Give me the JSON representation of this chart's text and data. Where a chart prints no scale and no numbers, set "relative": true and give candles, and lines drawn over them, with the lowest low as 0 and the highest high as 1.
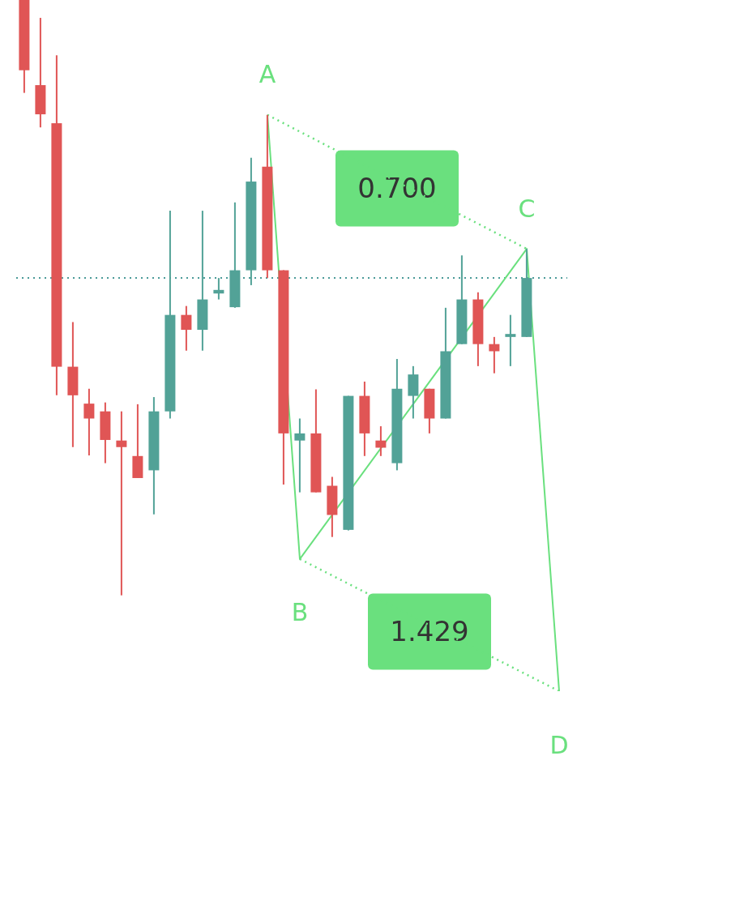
{
  "chart_data": {
    "type": "candlestick",
    "relative": true,
    "tick_labels": false,
    "categories": [
      null,
      null,
      null,
      null,
      null,
      null,
      null,
      null,
      null,
      null,
      null,
      null,
      null,
      null,
      null,
      null,
      null,
      null,
      null,
      null,
      null,
      null,
      null,
      null,
      null,
      null,
      null,
      null,
      null,
      null,
      null,
      null,
      null,
      null
    ],
    "ohlc": [
      [
        1,
        1,
        0.844,
        0.882
      ],
      [
        0.857,
        0.97,
        0.786,
        0.808
      ],
      [
        0.793,
        0.907,
        0.336,
        0.384
      ],
      [
        0.384,
        0.459,
        0.249,
        0.336
      ],
      [
        0.322,
        0.347,
        0.235,
        0.297
      ],
      [
        0.309,
        0.324,
        0.222,
        0.261
      ],
      [
        0.26,
        0.309,
        0,
        0.249
      ],
      [
        0.234,
        0.321,
        0.197,
        0.197
      ],
      [
        0.21,
        0.333,
        0.136,
        0.309
      ],
      [
        0.309,
        0.646,
        0.297,
        0.471
      ],
      [
        0.471,
        0.486,
        0.411,
        0.446
      ],
      [
        0.446,
        0.646,
        0.411,
        0.497
      ],
      [
        0.507,
        0.533,
        0.497,
        0.513
      ],
      [
        0.484,
        0.66,
        0.483,
        0.546
      ],
      [
        0.546,
        0.735,
        0.521,
        0.695
      ],
      [
        0.72,
        0.807,
        0.533,
        0.546
      ],
      [
        0.546,
        0.546,
        0.186,
        0.272
      ],
      [
        0.26,
        0.297,
        0.173,
        0.272
      ],
      [
        0.272,
        0.346,
        0.173,
        0.173
      ],
      [
        0.184,
        0.199,
        0.098,
        0.135
      ],
      [
        0.11,
        0.335,
        0.109,
        0.335
      ],
      [
        0.335,
        0.359,
        0.234,
        0.272
      ],
      [
        0.26,
        0.284,
        0.234,
        0.248
      ],
      [
        0.222,
        0.397,
        0.21,
        0.347
      ],
      [
        0.335,
        0.385,
        0.297,
        0.371
      ],
      [
        0.347,
        0.347,
        0.272,
        0.297
      ],
      [
        0.297,
        0.483,
        0.297,
        0.41
      ],
      [
        0.422,
        0.571,
        0.422,
        0.497
      ],
      [
        0.497,
        0.509,
        0.385,
        0.422
      ],
      [
        0.422,
        0.434,
        0.373,
        0.41
      ],
      [
        0.434,
        0.471,
        0.385,
        0.439
      ],
      [
        0.434,
        0.582,
        0.434,
        0.533
      ],
      null,
      null
    ],
    "colors": [
      "#e05555",
      "#e05555",
      "#e05555",
      "#e05555",
      "#e05555",
      "#e05555",
      "#e05555",
      "#e05555",
      "#52a297",
      "#52a297",
      "#e05555",
      "#52a297",
      "#52a297",
      "#52a297",
      "#52a297",
      "#e05555",
      "#e05555",
      "#52a297",
      "#e05555",
      "#e05555",
      "#52a297",
      "#e05555",
      "#e05555",
      "#52a297",
      "#52a297",
      "#e05555",
      "#52a297",
      "#52a297",
      "#e05555",
      "#e05555",
      "#52a297",
      "#52a297",
      null,
      null
    ],
    "series": [
      {
        "type": "line",
        "color": "#6ae07e",
        "values": [
          null,
          null,
          null,
          null,
          null,
          null,
          null,
          null,
          null,
          null,
          null,
          null,
          null,
          null,
          null,
          0.807,
          null,
          0.061,
          null,
          null,
          null,
          null,
          null,
          null,
          null,
          null,
          null,
          null,
          null,
          null,
          null,
          0.582,
          null,
          -0.161
        ]
      },
      {
        "type": "line",
        "color": "#6ae07e",
        "line_style": "dotted",
        "values": [
          null,
          null,
          null,
          null,
          null,
          null,
          null,
          null,
          null,
          null,
          null,
          null,
          null,
          null,
          null,
          0.807,
          null,
          null,
          null,
          null,
          null,
          null,
          null,
          null,
          null,
          null,
          null,
          null,
          null,
          null,
          null,
          0.582,
          null,
          null
        ]
      },
      {
        "type": "line",
        "color": "#6ae07e",
        "line_style": "dotted",
        "values": [
          null,
          null,
          null,
          null,
          null,
          null,
          null,
          null,
          null,
          null,
          null,
          null,
          null,
          null,
          null,
          null,
          null,
          0.061,
          null,
          null,
          null,
          null,
          null,
          null,
          null,
          null,
          null,
          null,
          null,
          null,
          null,
          null,
          null,
          -0.161
        ]
      }
    ],
    "ref_lines": [
      {
        "axis": "y",
        "value": 0.533,
        "color": "#4a9a98",
        "line_style": "dotted"
      }
    ],
    "annotations": [
      "A",
      "B",
      "C",
      "D",
      "0.700",
      "1.429"
    ]
  }
}
